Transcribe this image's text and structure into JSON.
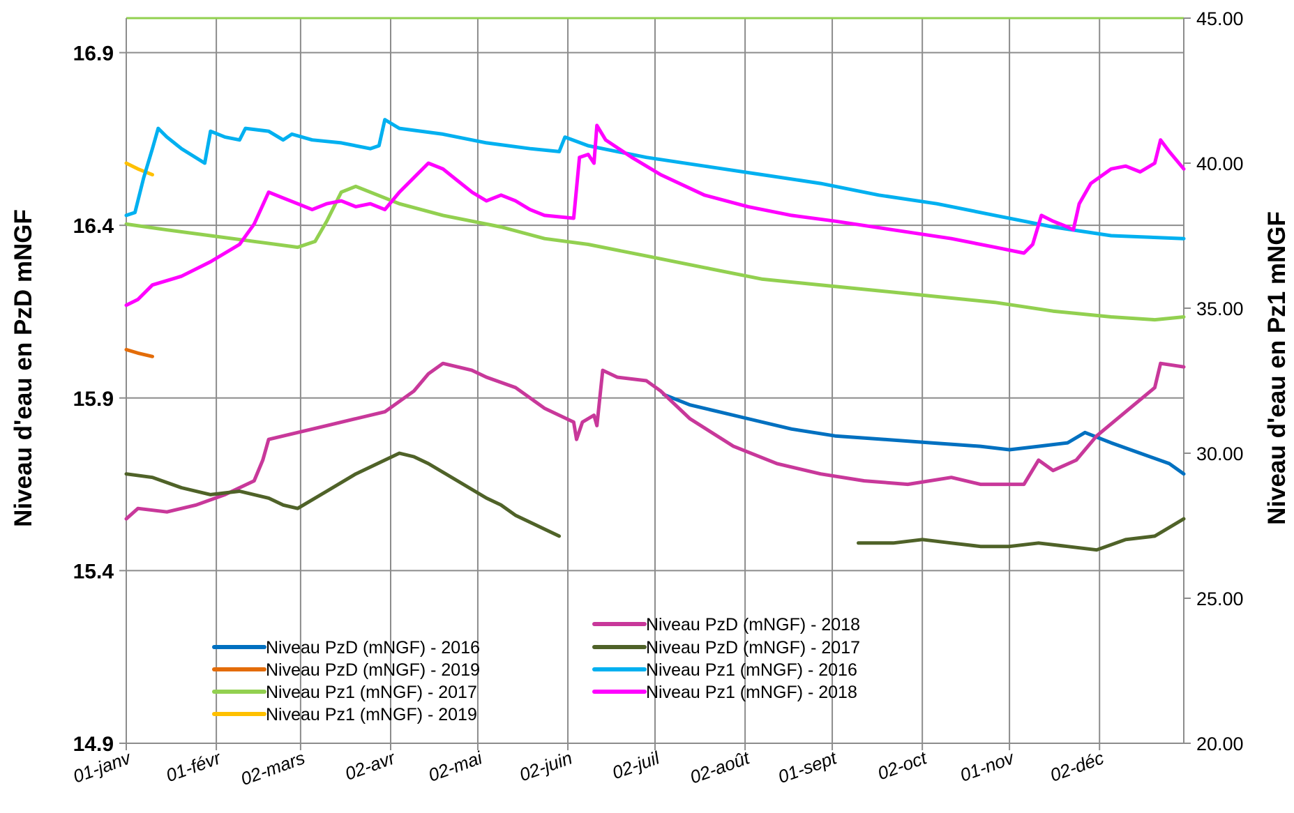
{
  "chart_data": {
    "type": "line",
    "title": "",
    "ylabel_left": "Niveau d'eau en PzD mNGF",
    "ylabel_right": "Niveau d'eau en Pz1 mNGF",
    "ylim_left": [
      14.9,
      17.0
    ],
    "ylim_right": [
      20.0,
      45.0
    ],
    "yticks_left": [
      "14.9",
      "15.4",
      "15.9",
      "16.4",
      "16.9"
    ],
    "yticks_right": [
      "20.00",
      "25.00",
      "30.00",
      "35.00",
      "40.00",
      "45.00"
    ],
    "xlim": [
      1,
      365
    ],
    "x_unit": "day of year",
    "x_ticks": [
      {
        "label": "01-janv",
        "day": 1
      },
      {
        "label": "01-févr",
        "day": 32
      },
      {
        "label": "02-mars",
        "day": 61
      },
      {
        "label": "02-avr",
        "day": 92
      },
      {
        "label": "02-mai",
        "day": 122
      },
      {
        "label": "02-juin",
        "day": 153
      },
      {
        "label": "02-juil",
        "day": 183
      },
      {
        "label": "02-août",
        "day": 214
      },
      {
        "label": "01-sept",
        "day": 244
      },
      {
        "label": "02-oct",
        "day": 275
      },
      {
        "label": "01-nov",
        "day": 305
      },
      {
        "label": "02-déc",
        "day": 336
      }
    ],
    "grid": true,
    "legend_position": "bottom-center",
    "series": [
      {
        "name": "Niveau PzD (mNGF) - 2016",
        "axis": "left",
        "color": "#0070C0",
        "points": [
          [
            186,
            15.91
          ],
          [
            195,
            15.88
          ],
          [
            205,
            15.86
          ],
          [
            215,
            15.84
          ],
          [
            230,
            15.81
          ],
          [
            245,
            15.79
          ],
          [
            262,
            15.78
          ],
          [
            278,
            15.77
          ],
          [
            295,
            15.76
          ],
          [
            305,
            15.75
          ],
          [
            315,
            15.76
          ],
          [
            325,
            15.77
          ],
          [
            331,
            15.8
          ],
          [
            340,
            15.77
          ],
          [
            350,
            15.74
          ],
          [
            360,
            15.71
          ],
          [
            365,
            15.68
          ]
        ]
      },
      {
        "name": "Niveau PzD (mNGF) - 2019",
        "axis": "left",
        "color": "#E36C09",
        "points": [
          [
            1,
            16.04
          ],
          [
            5,
            16.03
          ],
          [
            10,
            16.02
          ]
        ]
      },
      {
        "name": "Niveau Pz1 (mNGF) - 2017",
        "axis": "right",
        "color": "#92D050",
        "points": [
          [
            1,
            37.9
          ],
          [
            15,
            37.7
          ],
          [
            30,
            37.5
          ],
          [
            45,
            37.3
          ],
          [
            60,
            37.1
          ],
          [
            66,
            37.3
          ],
          [
            70,
            38.0
          ],
          [
            75,
            39.0
          ],
          [
            80,
            39.2
          ],
          [
            85,
            39.0
          ],
          [
            95,
            38.6
          ],
          [
            110,
            38.2
          ],
          [
            130,
            37.8
          ],
          [
            145,
            37.4
          ],
          [
            160,
            37.2
          ],
          [
            180,
            36.8
          ],
          [
            200,
            36.4
          ],
          [
            220,
            36.0
          ],
          [
            240,
            35.8
          ],
          [
            260,
            35.6
          ],
          [
            280,
            35.4
          ],
          [
            300,
            35.2
          ],
          [
            320,
            34.9
          ],
          [
            340,
            34.7
          ],
          [
            355,
            34.6
          ],
          [
            365,
            34.7
          ]
        ]
      },
      {
        "name": "Niveau Pz1 (mNGF) - 2019",
        "axis": "right",
        "color": "#FFC000",
        "points": [
          [
            1,
            40.0
          ],
          [
            5,
            39.8
          ],
          [
            10,
            39.6
          ]
        ]
      },
      {
        "name": "Niveau PzD (mNGF) - 2018",
        "axis": "left",
        "color": "#C8389A",
        "points": [
          [
            1,
            15.55
          ],
          [
            5,
            15.58
          ],
          [
            15,
            15.57
          ],
          [
            25,
            15.59
          ],
          [
            35,
            15.62
          ],
          [
            45,
            15.66
          ],
          [
            48,
            15.72
          ],
          [
            50,
            15.78
          ],
          [
            60,
            15.8
          ],
          [
            70,
            15.82
          ],
          [
            80,
            15.84
          ],
          [
            90,
            15.86
          ],
          [
            100,
            15.92
          ],
          [
            105,
            15.97
          ],
          [
            110,
            16.0
          ],
          [
            120,
            15.98
          ],
          [
            125,
            15.96
          ],
          [
            135,
            15.93
          ],
          [
            145,
            15.87
          ],
          [
            155,
            15.83
          ],
          [
            156,
            15.78
          ],
          [
            158,
            15.83
          ],
          [
            162,
            15.85
          ],
          [
            163,
            15.82
          ],
          [
            165,
            15.98
          ],
          [
            170,
            15.96
          ],
          [
            180,
            15.95
          ],
          [
            185,
            15.92
          ],
          [
            195,
            15.84
          ],
          [
            210,
            15.76
          ],
          [
            225,
            15.71
          ],
          [
            240,
            15.68
          ],
          [
            255,
            15.66
          ],
          [
            270,
            15.65
          ],
          [
            285,
            15.67
          ],
          [
            295,
            15.65
          ],
          [
            310,
            15.65
          ],
          [
            315,
            15.72
          ],
          [
            320,
            15.69
          ],
          [
            328,
            15.72
          ],
          [
            335,
            15.79
          ],
          [
            345,
            15.86
          ],
          [
            355,
            15.93
          ],
          [
            357,
            16.0
          ],
          [
            365,
            15.99
          ]
        ]
      },
      {
        "name": "Niveau PzD (mNGF) - 2017",
        "axis": "left",
        "color": "#4F6228",
        "points": [
          [
            1,
            15.68
          ],
          [
            10,
            15.67
          ],
          [
            20,
            15.64
          ],
          [
            30,
            15.62
          ],
          [
            40,
            15.63
          ],
          [
            50,
            15.61
          ],
          [
            55,
            15.59
          ],
          [
            60,
            15.58
          ],
          [
            70,
            15.63
          ],
          [
            80,
            15.68
          ],
          [
            90,
            15.72
          ],
          [
            95,
            15.74
          ],
          [
            100,
            15.73
          ],
          [
            105,
            15.71
          ],
          [
            115,
            15.66
          ],
          [
            125,
            15.61
          ],
          [
            130,
            15.59
          ],
          [
            135,
            15.56
          ],
          [
            140,
            15.54
          ],
          [
            150,
            15.5
          ],
          [
            253,
            15.48
          ],
          [
            265,
            15.48
          ],
          [
            275,
            15.49
          ],
          [
            285,
            15.48
          ],
          [
            295,
            15.47
          ],
          [
            305,
            15.47
          ],
          [
            315,
            15.48
          ],
          [
            325,
            15.47
          ],
          [
            335,
            15.46
          ],
          [
            345,
            15.49
          ],
          [
            355,
            15.5
          ],
          [
            365,
            15.55
          ]
        ]
      },
      {
        "name": "Niveau Pz1 (mNGF) - 2016",
        "axis": "right",
        "color": "#00B0F0",
        "points": [
          [
            1,
            38.2
          ],
          [
            4,
            38.3
          ],
          [
            7,
            39.5
          ],
          [
            10,
            40.5
          ],
          [
            12,
            41.2
          ],
          [
            15,
            40.9
          ],
          [
            20,
            40.5
          ],
          [
            28,
            40.0
          ],
          [
            30,
            41.1
          ],
          [
            35,
            40.9
          ],
          [
            40,
            40.8
          ],
          [
            42,
            41.2
          ],
          [
            50,
            41.1
          ],
          [
            55,
            40.8
          ],
          [
            58,
            41.0
          ],
          [
            65,
            40.8
          ],
          [
            75,
            40.7
          ],
          [
            85,
            40.5
          ],
          [
            88,
            40.6
          ],
          [
            90,
            41.5
          ],
          [
            95,
            41.2
          ],
          [
            110,
            41.0
          ],
          [
            125,
            40.7
          ],
          [
            140,
            40.5
          ],
          [
            150,
            40.4
          ],
          [
            152,
            40.9
          ],
          [
            160,
            40.6
          ],
          [
            170,
            40.4
          ],
          [
            180,
            40.2
          ],
          [
            200,
            39.9
          ],
          [
            220,
            39.6
          ],
          [
            240,
            39.3
          ],
          [
            260,
            38.9
          ],
          [
            280,
            38.6
          ],
          [
            300,
            38.2
          ],
          [
            320,
            37.8
          ],
          [
            340,
            37.5
          ],
          [
            365,
            37.4
          ]
        ]
      },
      {
        "name": "Niveau Pz1 (mNGF) - 2018",
        "axis": "right",
        "color": "#FF00FF",
        "points": [
          [
            1,
            35.1
          ],
          [
            5,
            35.3
          ],
          [
            10,
            35.8
          ],
          [
            20,
            36.1
          ],
          [
            30,
            36.6
          ],
          [
            40,
            37.2
          ],
          [
            45,
            37.9
          ],
          [
            50,
            39.0
          ],
          [
            55,
            38.8
          ],
          [
            60,
            38.6
          ],
          [
            65,
            38.4
          ],
          [
            70,
            38.6
          ],
          [
            75,
            38.7
          ],
          [
            80,
            38.5
          ],
          [
            85,
            38.6
          ],
          [
            90,
            38.4
          ],
          [
            95,
            39.0
          ],
          [
            100,
            39.5
          ],
          [
            105,
            40.0
          ],
          [
            110,
            39.8
          ],
          [
            115,
            39.4
          ],
          [
            120,
            39.0
          ],
          [
            125,
            38.7
          ],
          [
            130,
            38.9
          ],
          [
            135,
            38.7
          ],
          [
            140,
            38.4
          ],
          [
            145,
            38.2
          ],
          [
            155,
            38.1
          ],
          [
            157,
            40.2
          ],
          [
            160,
            40.3
          ],
          [
            162,
            40.0
          ],
          [
            163,
            41.3
          ],
          [
            166,
            40.8
          ],
          [
            175,
            40.2
          ],
          [
            185,
            39.6
          ],
          [
            200,
            38.9
          ],
          [
            215,
            38.5
          ],
          [
            230,
            38.2
          ],
          [
            245,
            38.0
          ],
          [
            265,
            37.7
          ],
          [
            285,
            37.4
          ],
          [
            300,
            37.1
          ],
          [
            310,
            36.9
          ],
          [
            313,
            37.2
          ],
          [
            316,
            38.2
          ],
          [
            320,
            38.0
          ],
          [
            325,
            37.8
          ],
          [
            327,
            37.7
          ],
          [
            329,
            38.6
          ],
          [
            333,
            39.3
          ],
          [
            340,
            39.8
          ],
          [
            345,
            39.9
          ],
          [
            350,
            39.7
          ],
          [
            355,
            40.0
          ],
          [
            357,
            40.8
          ],
          [
            360,
            40.4
          ],
          [
            365,
            39.8
          ]
        ]
      }
    ]
  }
}
